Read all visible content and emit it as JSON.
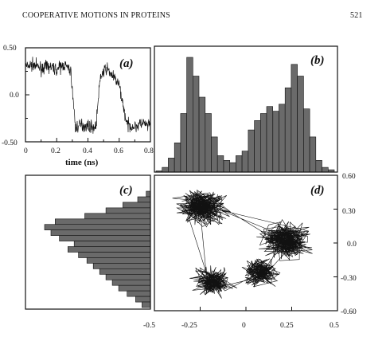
{
  "header": {
    "title": "COOPERATIVE MOTIONS IN PROTEINS",
    "page_number": "521"
  },
  "panels": {
    "a": {
      "label": "(a)",
      "xlabel": "time (ns)",
      "x_ticks": [
        "0",
        "0.2",
        "0.4",
        "0.6",
        "0.8"
      ],
      "y_ticks": [
        "0.50",
        "0.0",
        "-0.50"
      ]
    },
    "b": {
      "label": "(b)"
    },
    "c": {
      "label": "(c)"
    },
    "d": {
      "label": "(d)",
      "x_ticks": [
        "-0.5",
        "-0.25",
        "0",
        "0.25",
        "0.5"
      ],
      "y_ticks": [
        "0.60",
        "0.30",
        "0.0",
        "-0.30",
        "-0.60"
      ]
    }
  },
  "chart_data": [
    {
      "type": "line",
      "panel": "a",
      "xlabel": "time (ns)",
      "xlim": [
        0,
        0.8
      ],
      "ylim": [
        -0.5,
        0.5
      ],
      "x": [
        0,
        0.05,
        0.1,
        0.15,
        0.2,
        0.25,
        0.29,
        0.32,
        0.35,
        0.4,
        0.45,
        0.48,
        0.52,
        0.55,
        0.6,
        0.65,
        0.7,
        0.75,
        0.78
      ],
      "y": [
        0.3,
        0.32,
        0.28,
        0.3,
        0.27,
        0.32,
        0.25,
        -0.35,
        -0.32,
        -0.33,
        -0.35,
        0.2,
        0.28,
        0.22,
        0.1,
        -0.32,
        -0.34,
        -0.3,
        -0.33
      ]
    },
    {
      "type": "bar",
      "panel": "b",
      "values": [
        1,
        4,
        12,
        25,
        50,
        98,
        82,
        64,
        50,
        30,
        14,
        10,
        8,
        14,
        18,
        36,
        44,
        50,
        56,
        52,
        58,
        72,
        92,
        82,
        54,
        30,
        10,
        4,
        2
      ]
    },
    {
      "type": "bar",
      "panel": "c",
      "orientation": "horizontal",
      "values": [
        4,
        12,
        26,
        42,
        62,
        90,
        100,
        94,
        86,
        72,
        78,
        68,
        60,
        54,
        48,
        42,
        36,
        30,
        22,
        14,
        8
      ]
    },
    {
      "type": "scatter",
      "panel": "d",
      "xlim": [
        -0.5,
        0.5
      ],
      "ylim": [
        -0.6,
        0.6
      ],
      "clusters": [
        {
          "x": -0.24,
          "y": 0.32
        },
        {
          "x": 0.22,
          "y": 0.02
        },
        {
          "x": -0.18,
          "y": -0.34
        },
        {
          "x": 0.08,
          "y": -0.26
        }
      ]
    }
  ]
}
